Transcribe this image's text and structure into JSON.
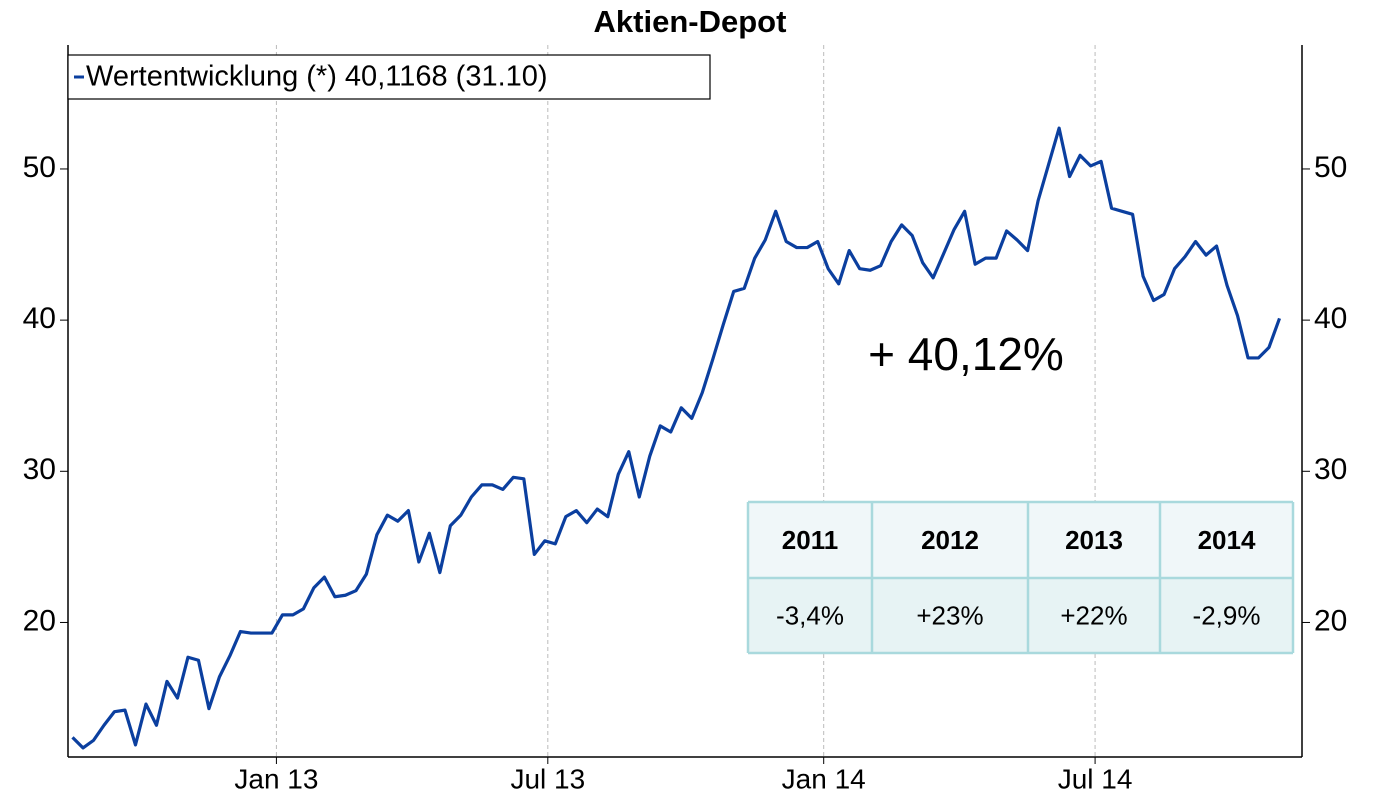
{
  "chart_data": {
    "type": "line",
    "title": "Aktien-Depot",
    "annotation": "+ 40,12%",
    "x": [
      0,
      7,
      14,
      21,
      28,
      35,
      42,
      49,
      56,
      63,
      70,
      77,
      84,
      91,
      98,
      105,
      112,
      119,
      126,
      133,
      140,
      147,
      154,
      161,
      168,
      175,
      182,
      189,
      196,
      203,
      210,
      217,
      224,
      231,
      238,
      245,
      252,
      259,
      266,
      273,
      280,
      287,
      294,
      301,
      308,
      315,
      322,
      329,
      336,
      343,
      350,
      357,
      364,
      371,
      378,
      385,
      392,
      399,
      406,
      413,
      420,
      427,
      434,
      441,
      448,
      455,
      462,
      469,
      476,
      483,
      490,
      497,
      504,
      511,
      518,
      525,
      532,
      539,
      546,
      553,
      560,
      567,
      574,
      581,
      588,
      595,
      602,
      609,
      616,
      623,
      630,
      637,
      644,
      651,
      658,
      665,
      672,
      679,
      686,
      693,
      700,
      707,
      714,
      721,
      728,
      735,
      742,
      749,
      756,
      763,
      770,
      777,
      784,
      791,
      798,
      805
    ],
    "series": [
      {
        "name": "Wertentwicklung (*) 40,1168 (31.10)",
        "color": "#0b3f9f",
        "values": [
          12.4,
          11.7,
          12.2,
          13.2,
          14.1,
          14.2,
          11.9,
          14.6,
          13.2,
          16.1,
          15.0,
          17.7,
          17.5,
          14.3,
          16.4,
          17.8,
          19.4,
          19.3,
          19.3,
          19.3,
          20.5,
          20.5,
          20.9,
          22.3,
          23.0,
          21.7,
          21.8,
          22.1,
          23.2,
          25.8,
          27.1,
          26.7,
          27.4,
          24.0,
          25.9,
          23.3,
          26.4,
          27.1,
          28.3,
          29.1,
          29.1,
          28.8,
          29.6,
          29.5,
          24.5,
          25.4,
          25.2,
          27.0,
          27.4,
          26.6,
          27.5,
          27.0,
          29.8,
          31.3,
          28.3,
          31.0,
          33.0,
          32.6,
          34.2,
          33.5,
          35.2,
          37.4,
          39.7,
          41.9,
          42.1,
          44.1,
          45.3,
          47.2,
          45.2,
          44.8,
          44.8,
          45.2,
          43.4,
          42.4,
          44.6,
          43.4,
          43.3,
          43.6,
          45.2,
          46.3,
          45.6,
          43.8,
          42.8,
          44.4,
          46.0,
          47.2,
          43.7,
          44.1,
          44.1,
          45.9,
          45.3,
          44.6,
          47.9,
          50.3,
          52.7,
          49.5,
          50.9,
          50.2,
          50.5,
          47.4,
          47.2,
          47.0,
          42.9,
          41.3,
          41.7,
          43.4,
          44.2,
          45.2,
          44.3,
          44.9,
          42.3,
          40.3,
          37.5,
          37.5,
          38.2,
          40.1168
        ]
      }
    ],
    "xlim": [
      -3,
      820
    ],
    "xticks": [
      {
        "value": 136,
        "label": "Jan 13"
      },
      {
        "value": 317,
        "label": "Jul 13"
      },
      {
        "value": 501,
        "label": "Jan 14"
      },
      {
        "value": 682,
        "label": "Jul 14"
      }
    ],
    "ylim": [
      11.1,
      58.2
    ],
    "yticks": [
      20,
      30,
      40,
      50
    ],
    "xgrid": true,
    "legend": "top-left"
  },
  "table": {
    "header": [
      "2011",
      "2012",
      "2013",
      "2014"
    ],
    "rows": [
      [
        "-3,4%",
        "+23%",
        "+22%",
        "-2,9%"
      ]
    ]
  }
}
